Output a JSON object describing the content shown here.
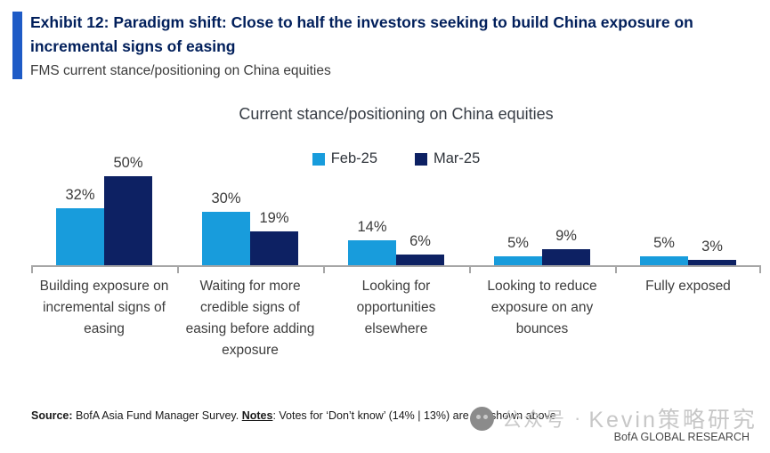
{
  "header": {
    "exhibit_title": "Exhibit 12: Paradigm shift: Close to half the investors seeking to build China exposure on incremental signs of easing",
    "subtitle": "FMS current stance/positioning on China equities"
  },
  "chart_data": {
    "type": "bar",
    "title": "Current stance/positioning on China equities",
    "categories": [
      "Building exposure on incremental signs of easing",
      "Waiting for more credible signs of easing before adding exposure",
      "Looking for opportunities elsewhere",
      "Looking to reduce exposure on any bounces",
      "Fully exposed"
    ],
    "series": [
      {
        "name": "Feb-25",
        "color": "#189cdc",
        "values": [
          32,
          30,
          14,
          5,
          5
        ]
      },
      {
        "name": "Mar-25",
        "color": "#0d2163",
        "values": [
          50,
          19,
          6,
          9,
          3
        ]
      }
    ],
    "unit": "%",
    "value_labels": true,
    "ylim": [
      0,
      55
    ],
    "grid": false,
    "legend_position": "top-center",
    "axis_color": "#a6a6a6"
  },
  "footer": {
    "source_label": "Source:",
    "source_text": " BofA Asia Fund Manager Survey. ",
    "notes_label": "Notes",
    "notes_text": ": Votes for ‘Don’t know’ (14% | 13%) are not shown above",
    "brand": "BofA GLOBAL RESEARCH"
  },
  "watermark": {
    "icon": "wechat-icon",
    "text": "公众号",
    "separator": "·",
    "name": "Kevin策略研究"
  },
  "colors": {
    "accent_bar": "#1e5bc6",
    "title_navy": "#011f5b",
    "axis_gray": "#a6a6a6"
  }
}
